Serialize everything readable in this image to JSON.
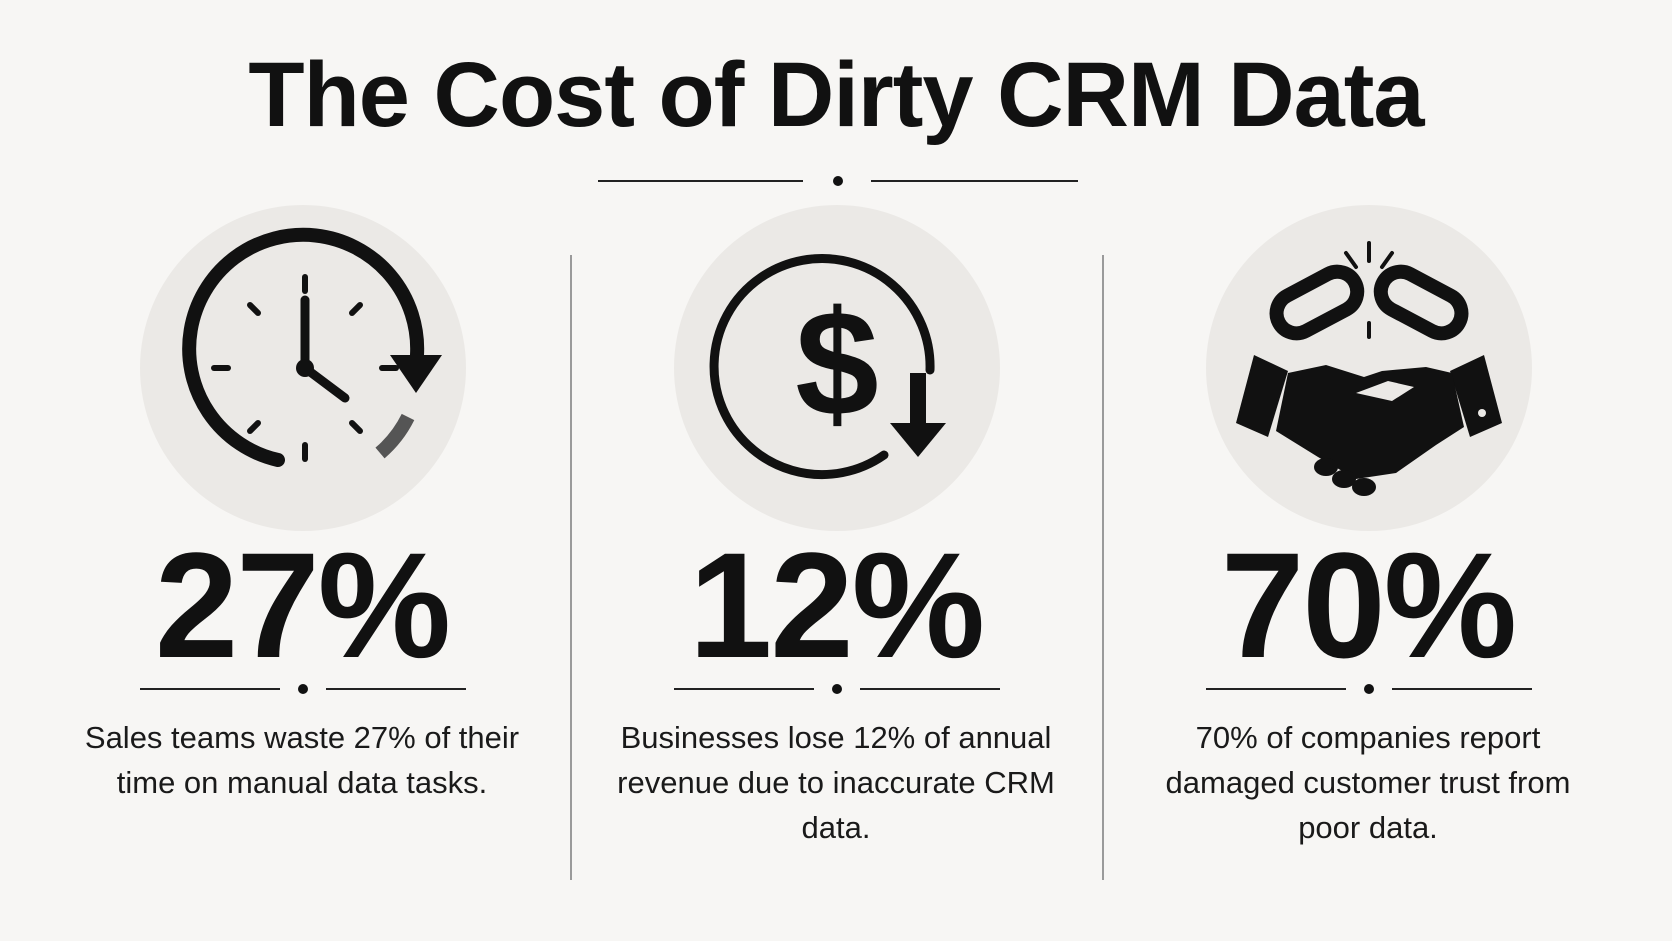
{
  "title": "The Cost of Dirty CRM Data",
  "stats": [
    {
      "value": "27%",
      "description": "Sales teams waste 27% of their time on manual data tasks.",
      "icon": "clock-arrow-icon"
    },
    {
      "value": "12%",
      "description": "Businesses lose 12% of annual revenue due to inaccurate CRM data.",
      "icon": "dollar-down-arrow-icon"
    },
    {
      "value": "70%",
      "description": "70% of companies report damaged customer trust from poor data.",
      "icon": "broken-chain-handshake-icon"
    }
  ],
  "colors": {
    "background": "#f7f6f4",
    "icon_circle": "#ebe9e6",
    "ink": "#111111"
  }
}
